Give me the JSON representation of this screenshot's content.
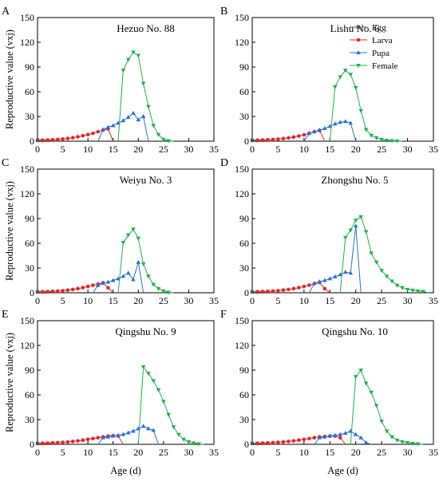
{
  "figure": {
    "ylabel": "Reproductive value (vxj)",
    "xlabel": "Age (d)"
  },
  "legend": [
    {
      "name": "Egg",
      "color": "#555555",
      "marker": "square"
    },
    {
      "name": "Larva",
      "color": "#e8262a",
      "marker": "circle"
    },
    {
      "name": "Pupa",
      "color": "#2b6fd6",
      "marker": "triangle-up"
    },
    {
      "name": "Female",
      "color": "#22b04b",
      "marker": "triangle-down"
    }
  ],
  "chart_data": [
    {
      "type": "line",
      "letter": "A",
      "title": "Hezuo No. 88",
      "xlim": [
        0,
        35
      ],
      "ylim": [
        0,
        150
      ],
      "xticks": [
        0,
        5,
        10,
        15,
        20,
        25,
        30,
        35
      ],
      "yticks": [
        0,
        30,
        60,
        90,
        120,
        150
      ],
      "series": [
        {
          "name": "Egg",
          "x": [
            0,
            1,
            2,
            3
          ],
          "y": [
            1,
            1,
            1.2,
            1.3
          ]
        },
        {
          "name": "Larva",
          "x": [
            1,
            2,
            3,
            4,
            5,
            6,
            7,
            8,
            9,
            10,
            11,
            12,
            13,
            14,
            15
          ],
          "y": [
            1,
            1.3,
            1.6,
            2,
            2.6,
            3.3,
            4.2,
            5.3,
            6.6,
            8,
            9.5,
            11.5,
            13.5,
            15,
            0
          ]
        },
        {
          "name": "Pupa",
          "x": [
            12,
            13,
            14,
            15,
            16,
            17,
            18,
            19,
            20,
            21,
            22
          ],
          "y": [
            0,
            14,
            17,
            19,
            22,
            25,
            29,
            34,
            26,
            30,
            0
          ]
        },
        {
          "name": "Female",
          "x": [
            16,
            17,
            18,
            19,
            20,
            21,
            22,
            23,
            24,
            25,
            26,
            27
          ],
          "y": [
            0,
            86,
            99,
            108,
            104,
            70,
            42,
            19,
            8,
            2,
            0.5,
            0
          ]
        }
      ]
    },
    {
      "type": "line",
      "letter": "B",
      "title": "Lishu No. 6",
      "xlim": [
        0,
        35
      ],
      "ylim": [
        0,
        150
      ],
      "xticks": [
        0,
        5,
        10,
        15,
        20,
        25,
        30,
        35
      ],
      "yticks": [
        0,
        30,
        60,
        90,
        120,
        150
      ],
      "series": [
        {
          "name": "Egg",
          "x": [
            0,
            1,
            2,
            3
          ],
          "y": [
            1,
            1,
            1.2,
            1.3
          ]
        },
        {
          "name": "Larva",
          "x": [
            1,
            2,
            3,
            4,
            5,
            6,
            7,
            8,
            9,
            10,
            11,
            12,
            13,
            14
          ],
          "y": [
            1,
            1.3,
            1.6,
            2,
            2.5,
            3.2,
            4,
            5,
            6.3,
            7.8,
            9.5,
            11.5,
            13,
            0
          ]
        },
        {
          "name": "Pupa",
          "x": [
            10,
            11,
            12,
            13,
            14,
            15,
            16,
            17,
            18,
            19,
            20
          ],
          "y": [
            0,
            9.5,
            11.5,
            13.5,
            15.5,
            18,
            21,
            23,
            24,
            22,
            0
          ]
        },
        {
          "name": "Female",
          "x": [
            15,
            16,
            17,
            18,
            19,
            20,
            21,
            22,
            23,
            24,
            25,
            26,
            27,
            28,
            29
          ],
          "y": [
            0,
            66,
            78,
            86,
            81,
            65,
            37,
            14,
            7,
            4,
            2,
            1,
            0.5,
            0.3,
            0
          ]
        }
      ]
    },
    {
      "type": "line",
      "letter": "C",
      "title": "Weiyu No. 3",
      "xlim": [
        0,
        35
      ],
      "ylim": [
        0,
        150
      ],
      "xticks": [
        0,
        5,
        10,
        15,
        20,
        25,
        30,
        35
      ],
      "yticks": [
        0,
        30,
        60,
        90,
        120,
        150
      ],
      "series": [
        {
          "name": "Egg",
          "x": [
            0,
            1,
            2,
            3
          ],
          "y": [
            1,
            1,
            1.2,
            1.3
          ]
        },
        {
          "name": "Larva",
          "x": [
            1,
            2,
            3,
            4,
            5,
            6,
            7,
            8,
            9,
            10,
            11,
            12,
            13,
            14,
            15
          ],
          "y": [
            1,
            1.3,
            1.6,
            2,
            2.5,
            3.2,
            4,
            5,
            6.2,
            7.6,
            9,
            10.5,
            12,
            6,
            0
          ]
        },
        {
          "name": "Pupa",
          "x": [
            11,
            12,
            13,
            14,
            15,
            16,
            17,
            18,
            19,
            20,
            21
          ],
          "y": [
            0,
            9,
            11.5,
            13,
            15,
            17,
            20,
            24,
            16,
            37,
            0
          ]
        },
        {
          "name": "Female",
          "x": [
            16,
            17,
            18,
            19,
            20,
            21,
            22,
            23,
            24,
            25,
            26,
            27
          ],
          "y": [
            0,
            61,
            70,
            77,
            66,
            35,
            20,
            10,
            5,
            2,
            0.5,
            0
          ]
        }
      ]
    },
    {
      "type": "line",
      "letter": "D",
      "title": "Zhongshu No. 5",
      "xlim": [
        0,
        35
      ],
      "ylim": [
        0,
        150
      ],
      "xticks": [
        0,
        5,
        10,
        15,
        20,
        25,
        30,
        35
      ],
      "yticks": [
        0,
        30,
        60,
        90,
        120,
        150
      ],
      "series": [
        {
          "name": "Egg",
          "x": [
            0,
            1,
            2,
            3
          ],
          "y": [
            1,
            1,
            1.2,
            1.3
          ]
        },
        {
          "name": "Larva",
          "x": [
            1,
            2,
            3,
            4,
            5,
            6,
            7,
            8,
            9,
            10,
            11,
            12,
            13,
            14,
            15
          ],
          "y": [
            1,
            1.3,
            1.6,
            2,
            2.5,
            3.2,
            4,
            5,
            6.2,
            7.6,
            9.2,
            11,
            12.5,
            5,
            0
          ]
        },
        {
          "name": "Pupa",
          "x": [
            11,
            12,
            13,
            14,
            15,
            16,
            17,
            18,
            19,
            20,
            21
          ],
          "y": [
            0,
            11.5,
            13.5,
            15,
            17,
            19.5,
            22,
            25,
            24,
            81,
            0
          ]
        },
        {
          "name": "Female",
          "x": [
            17,
            18,
            19,
            20,
            21,
            22,
            23,
            24,
            25,
            26,
            27,
            28,
            29,
            30,
            31,
            32,
            33,
            34
          ],
          "y": [
            0,
            67,
            76,
            88,
            92,
            74,
            48,
            37,
            27,
            20,
            14,
            9,
            6,
            4,
            3,
            2,
            1.5,
            0
          ]
        }
      ]
    },
    {
      "type": "line",
      "letter": "E",
      "title": "Qingshu No. 9",
      "xlim": [
        0,
        35
      ],
      "ylim": [
        0,
        150
      ],
      "xticks": [
        0,
        5,
        10,
        15,
        20,
        25,
        30,
        35
      ],
      "yticks": [
        0,
        30,
        60,
        90,
        120,
        150
      ],
      "series": [
        {
          "name": "Egg",
          "x": [
            0,
            1,
            2,
            3
          ],
          "y": [
            1,
            1,
            1.2,
            1.3
          ]
        },
        {
          "name": "Larva",
          "x": [
            1,
            2,
            3,
            4,
            5,
            6,
            7,
            8,
            9,
            10,
            11,
            12,
            13,
            14,
            15,
            16,
            17
          ],
          "y": [
            1,
            1.3,
            1.6,
            2,
            2.4,
            2.9,
            3.5,
            4.2,
            5,
            6,
            7,
            8,
            9,
            10,
            10.5,
            10,
            0
          ]
        },
        {
          "name": "Pupa",
          "x": [
            12,
            13,
            14,
            15,
            16,
            17,
            18,
            19,
            20,
            21,
            22,
            23,
            24
          ],
          "y": [
            0,
            8,
            9,
            10,
            11,
            12,
            14,
            16,
            19,
            22,
            19,
            17,
            0
          ]
        },
        {
          "name": "Female",
          "x": [
            20,
            21,
            22,
            23,
            24,
            25,
            26,
            27,
            28,
            29,
            30,
            31,
            32,
            33
          ],
          "y": [
            0,
            94,
            86,
            77,
            66,
            52,
            36,
            21,
            12,
            6,
            3,
            1.5,
            0.5,
            0
          ]
        }
      ]
    },
    {
      "type": "line",
      "letter": "F",
      "title": "Qingshu No. 10",
      "xlim": [
        0,
        35
      ],
      "ylim": [
        0,
        150
      ],
      "xticks": [
        0,
        5,
        10,
        15,
        20,
        25,
        30,
        35
      ],
      "yticks": [
        0,
        30,
        60,
        90,
        120,
        150
      ],
      "series": [
        {
          "name": "Egg",
          "x": [
            0,
            1,
            2,
            3
          ],
          "y": [
            1,
            1,
            1.2,
            1.3
          ]
        },
        {
          "name": "Larva",
          "x": [
            1,
            2,
            3,
            4,
            5,
            6,
            7,
            8,
            9,
            10,
            11,
            12,
            13,
            14,
            15,
            16,
            17,
            18
          ],
          "y": [
            1,
            1.3,
            1.6,
            2,
            2.4,
            2.9,
            3.5,
            4.2,
            5,
            6,
            7,
            8,
            9,
            9.5,
            10,
            10,
            8,
            0
          ]
        },
        {
          "name": "Pupa",
          "x": [
            12,
            13,
            14,
            15,
            16,
            17,
            18,
            19,
            20,
            21,
            22,
            23
          ],
          "y": [
            0,
            8,
            9,
            10,
            11,
            12,
            13.5,
            16,
            12,
            8,
            2,
            0
          ]
        },
        {
          "name": "Female",
          "x": [
            19,
            20,
            21,
            22,
            23,
            24,
            25,
            26,
            27,
            28,
            29,
            30,
            31,
            32,
            33
          ],
          "y": [
            0,
            82,
            90,
            74,
            63,
            47,
            28,
            16,
            9,
            5,
            3,
            2,
            1,
            0.5,
            0
          ]
        }
      ]
    }
  ]
}
